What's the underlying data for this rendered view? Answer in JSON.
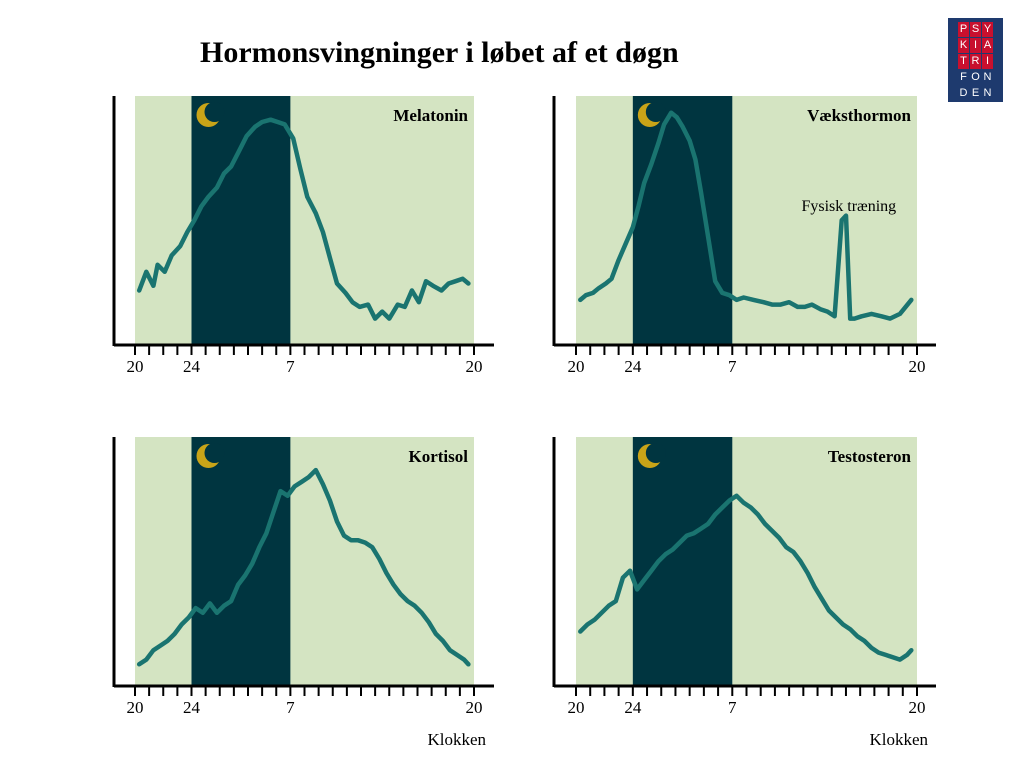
{
  "title": "Hormonsvingninger i løbet af et døgn",
  "logo": {
    "rows": [
      [
        "P",
        "S",
        "Y"
      ],
      [
        "K",
        "I",
        "A"
      ],
      [
        "T",
        "R",
        "I"
      ],
      [
        "F",
        "O",
        "N"
      ],
      [
        "D",
        "E",
        "N"
      ]
    ],
    "background": "#1e3a6e",
    "highlight": "#c8102e"
  },
  "colors": {
    "day": "#d4e4c2",
    "night": "#003540",
    "line": "#1a7470",
    "moon": "#c9a418",
    "axis": "#000000"
  },
  "chart_data": [
    {
      "type": "line",
      "title": "Melatonin",
      "x_ticks": [
        "20",
        "24",
        "7",
        "20"
      ],
      "x_range": [
        20,
        44
      ],
      "night_band": [
        24,
        31
      ],
      "ylim": [
        0,
        100
      ],
      "xlabel": "",
      "series": [
        {
          "x": [
            20.3,
            20.8,
            21.3,
            21.6,
            22.1,
            22.6,
            23.2,
            23.7,
            24.2,
            24.7,
            25.2,
            25.8,
            26.3,
            26.8,
            27.4,
            27.9,
            28.5,
            29.0,
            29.6,
            30.1,
            30.6,
            31.2,
            31.7,
            32.2,
            32.8,
            33.3,
            33.8,
            34.3,
            34.9,
            35.4,
            35.9,
            36.5,
            37.0,
            37.5,
            38.0,
            38.6,
            39.1,
            39.6,
            40.1,
            40.6,
            41.1,
            41.7,
            42.2,
            42.7,
            43.2,
            43.6
          ],
          "y": [
            22,
            30,
            24,
            33,
            30,
            37,
            41,
            47,
            52,
            58,
            62,
            66,
            72,
            75,
            82,
            88,
            92,
            94,
            95,
            94,
            93,
            87,
            74,
            62,
            55,
            47,
            36,
            25,
            21,
            17,
            15,
            16,
            10,
            13,
            10,
            16,
            15,
            22,
            17,
            26,
            24,
            22,
            25,
            26,
            27,
            25
          ]
        }
      ],
      "annotations": []
    },
    {
      "type": "line",
      "title": "Væksthormon",
      "x_ticks": [
        "20",
        "24",
        "7",
        "20"
      ],
      "x_range": [
        20,
        44
      ],
      "night_band": [
        24,
        31
      ],
      "ylim": [
        0,
        100
      ],
      "xlabel": "",
      "series": [
        {
          "x": [
            20.3,
            20.7,
            21.2,
            21.6,
            22.1,
            22.5,
            23.0,
            23.5,
            24.0,
            24.4,
            24.8,
            25.3,
            25.8,
            26.2,
            26.7,
            27.1,
            27.5,
            28.0,
            28.4,
            28.8,
            29.3,
            29.8,
            30.3,
            30.8,
            31.3,
            31.8,
            32.5,
            33.2,
            33.8,
            34.4,
            35.0,
            35.6,
            36.1,
            36.6,
            37.2,
            37.7,
            38.2,
            38.7,
            39.0,
            39.3,
            39.6,
            40.1,
            40.8,
            41.5,
            42.1,
            42.8,
            43.2,
            43.6
          ],
          "y": [
            18,
            20,
            21,
            23,
            25,
            27,
            35,
            42,
            49,
            58,
            68,
            76,
            85,
            93,
            98,
            96,
            92,
            86,
            78,
            64,
            45,
            26,
            21,
            20,
            18,
            19,
            18,
            17,
            16,
            16,
            17,
            15,
            15,
            16,
            14,
            13,
            11,
            52,
            54,
            10,
            10,
            11,
            12,
            11,
            10,
            12,
            15,
            18
          ]
        }
      ],
      "annotations": [
        {
          "text": "Fysisk træning",
          "x": 39.2,
          "y": 56
        }
      ]
    },
    {
      "type": "line",
      "title": "Kortisol",
      "x_ticks": [
        "20",
        "24",
        "7",
        "20"
      ],
      "x_range": [
        20,
        44
      ],
      "night_band": [
        24,
        31
      ],
      "ylim": [
        0,
        100
      ],
      "xlabel": "Klokken",
      "series": [
        {
          "x": [
            20.3,
            20.8,
            21.3,
            21.8,
            22.3,
            22.8,
            23.3,
            23.8,
            24.3,
            24.8,
            25.3,
            25.8,
            26.3,
            26.8,
            27.3,
            27.8,
            28.3,
            28.8,
            29.3,
            29.8,
            30.3,
            30.8,
            31.3,
            31.8,
            32.3,
            32.8,
            33.3,
            33.8,
            34.3,
            34.8,
            35.3,
            35.8,
            36.3,
            36.8,
            37.3,
            37.8,
            38.3,
            38.8,
            39.3,
            39.8,
            40.3,
            40.8,
            41.3,
            41.8,
            42.3,
            42.8,
            43.3,
            43.6
          ],
          "y": [
            8,
            10,
            14,
            16,
            18,
            21,
            25,
            28,
            32,
            30,
            34,
            30,
            33,
            35,
            42,
            46,
            51,
            58,
            64,
            73,
            82,
            80,
            84,
            86,
            88,
            91,
            85,
            78,
            69,
            63,
            61,
            61,
            60,
            58,
            53,
            47,
            42,
            38,
            35,
            33,
            30,
            26,
            21,
            18,
            14,
            12,
            10,
            8
          ]
        }
      ],
      "annotations": []
    },
    {
      "type": "line",
      "title": "Testosteron",
      "x_ticks": [
        "20",
        "24",
        "7",
        "20"
      ],
      "x_range": [
        20,
        44
      ],
      "night_band": [
        24,
        31
      ],
      "ylim": [
        0,
        100
      ],
      "xlabel": "Klokken",
      "series": [
        {
          "x": [
            20.3,
            20.8,
            21.3,
            21.8,
            22.3,
            22.8,
            23.3,
            23.8,
            24.3,
            24.8,
            25.3,
            25.8,
            26.3,
            26.8,
            27.3,
            27.8,
            28.3,
            28.8,
            29.3,
            29.8,
            30.3,
            30.8,
            31.3,
            31.8,
            32.3,
            32.8,
            33.3,
            33.8,
            34.3,
            34.8,
            35.3,
            35.8,
            36.3,
            36.8,
            37.3,
            37.8,
            38.3,
            38.8,
            39.3,
            39.8,
            40.3,
            40.8,
            41.3,
            41.8,
            42.3,
            42.8,
            43.3,
            43.6
          ],
          "y": [
            22,
            25,
            27,
            30,
            33,
            35,
            45,
            48,
            40,
            44,
            48,
            52,
            55,
            57,
            60,
            63,
            64,
            66,
            68,
            72,
            75,
            78,
            80,
            77,
            75,
            72,
            68,
            65,
            62,
            58,
            56,
            52,
            47,
            41,
            36,
            31,
            28,
            25,
            23,
            20,
            18,
            15,
            13,
            12,
            11,
            10,
            12,
            14
          ]
        }
      ],
      "annotations": []
    }
  ]
}
